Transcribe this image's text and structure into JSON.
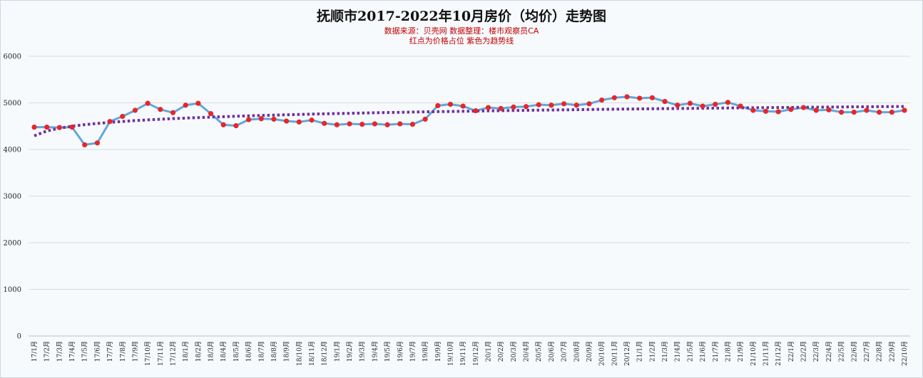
{
  "chart_data": {
    "type": "line",
    "title": "抚顺市2017-2022年10月房价（均价）走势图",
    "subtitle_lines": [
      "数据来源：贝壳网  数据整理：楼市观察员CA",
      "红点为价格占位  紫色为趋势线"
    ],
    "ylim": [
      0,
      6000
    ],
    "yticks": [
      0,
      1000,
      2000,
      3000,
      4000,
      5000,
      6000
    ],
    "grid": true,
    "categories": [
      "17/1月",
      "17/2月",
      "17/3月",
      "17/4月",
      "17/5月",
      "17/6月",
      "17/7月",
      "17/8月",
      "17/9月",
      "17/10月",
      "17/11月",
      "17/12月",
      "18/1月",
      "18/2月",
      "18/3月",
      "18/4月",
      "18/5月",
      "18/6月",
      "18/7月",
      "18/8月",
      "18/9月",
      "18/10月",
      "18/11月",
      "18/12月",
      "19/1月",
      "19/2月",
      "19/3月",
      "19/4月",
      "19/5月",
      "19/6月",
      "19/7月",
      "19/8月",
      "19/9月",
      "19/10月",
      "19/11月",
      "19/12月",
      "20/1月",
      "20/2月",
      "20/3月",
      "20/4月",
      "20/5月",
      "20/6月",
      "20/7月",
      "20/8月",
      "20/9月",
      "20/10月",
      "20/11月",
      "20/12月",
      "21/1月",
      "21/2月",
      "21/3月",
      "21/4月",
      "21/5月",
      "21/6月",
      "21/7月",
      "21/8月",
      "21/9月",
      "21/10月",
      "21/11月",
      "21/12月",
      "22/1月",
      "22/2月",
      "22/3月",
      "22/4月",
      "22/5月",
      "22/6月",
      "22/7月",
      "22/8月",
      "22/9月",
      "22/10月"
    ],
    "series": [
      {
        "values": [
          4480,
          4480,
          4470,
          4480,
          4100,
          4140,
          4600,
          4710,
          4840,
          4990,
          4860,
          4790,
          4950,
          4990,
          4770,
          4530,
          4510,
          4640,
          4660,
          4650,
          4610,
          4590,
          4630,
          4560,
          4530,
          4550,
          4540,
          4550,
          4530,
          4550,
          4540,
          4650,
          4940,
          4970,
          4930,
          4830,
          4900,
          4880,
          4910,
          4920,
          4960,
          4950,
          4980,
          4950,
          4980,
          5060,
          5110,
          5130,
          5100,
          5110,
          5030,
          4950,
          4990,
          4930,
          4970,
          5010,
          4930,
          4840,
          4820,
          4810,
          4860,
          4900,
          4840,
          4850,
          4800,
          4800,
          4840,
          4800,
          4800,
          4840
        ],
        "color": "#5fa8db",
        "marker_color": "#e8262a"
      }
    ],
    "trendline": {
      "type": "logarithmic",
      "color": "#7030a0",
      "style": "dotted"
    }
  }
}
